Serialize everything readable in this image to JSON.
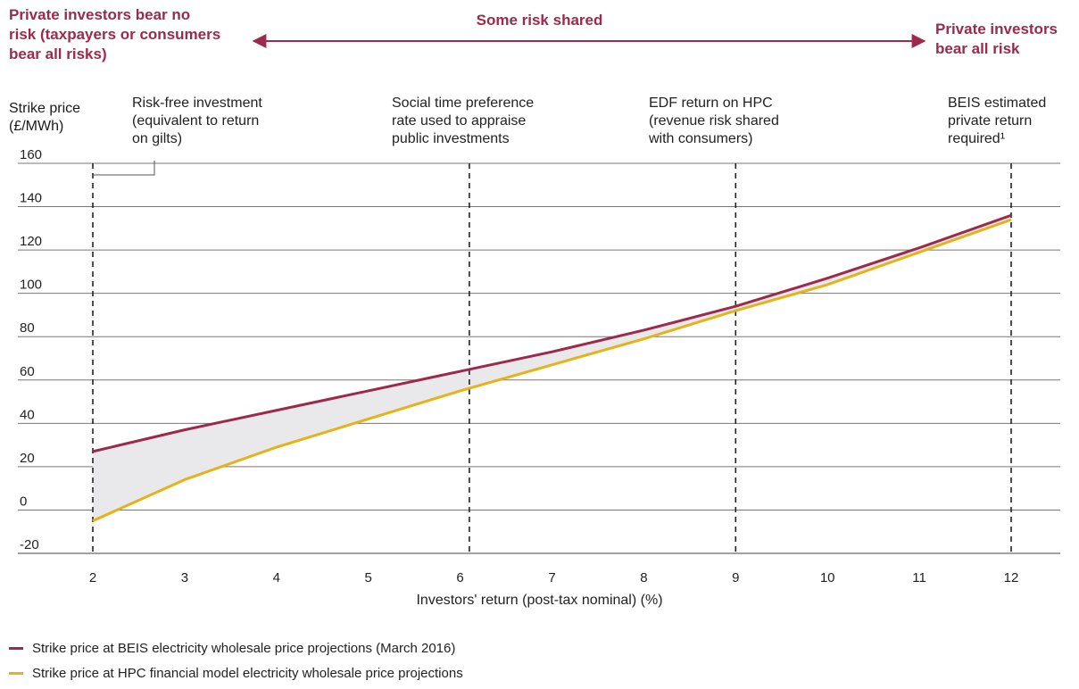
{
  "risk_banner": {
    "left": "Private investors bear no\nrisk (taxpayers or consumers\nbear all risks)",
    "middle": "Some risk shared",
    "right": "Private investors\nbear all risk",
    "color": "#9b2a4c"
  },
  "annotations": [
    {
      "x": 2,
      "text": "Risk-free investment\n(equivalent to return\non gilts)"
    },
    {
      "x": 6.1,
      "text": "Social time preference\nrate used to appraise\npublic investments"
    },
    {
      "x": 9,
      "text": "EDF return on HPC\n(revenue risk shared\nwith consumers)"
    },
    {
      "x": 12,
      "text": "BEIS estimated\nprivate return\nrequired¹"
    }
  ],
  "chart_data": {
    "type": "line",
    "title": "",
    "xlabel": "Investors' return (post-tax nominal) (%)",
    "ylabel": "Strike price\n(£/MWh)",
    "xlim": [
      2,
      12
    ],
    "ylim": [
      -20,
      160
    ],
    "x_ticks": [
      2,
      3,
      4,
      5,
      6,
      7,
      8,
      9,
      10,
      11,
      12
    ],
    "y_ticks": [
      -20,
      0,
      20,
      40,
      60,
      80,
      100,
      120,
      140,
      160
    ],
    "grid": "horizontal",
    "reference_lines_x": [
      2,
      6.1,
      9,
      12
    ],
    "shaded_between_series": true,
    "series": [
      {
        "name": "Strike price at BEIS electricity wholesale price projections (March 2016)",
        "color": "#9b2a4c",
        "x": [
          2,
          3,
          4,
          5,
          6,
          7,
          8,
          9,
          10,
          11,
          12
        ],
        "values": [
          27,
          37,
          46,
          55,
          64,
          73,
          83,
          94,
          107,
          121,
          136
        ]
      },
      {
        "name": "Strike price at HPC financial model electricity wholesale price projections",
        "color": "#e6b219",
        "x": [
          2,
          3,
          4,
          5,
          6,
          7,
          8,
          9,
          10,
          11,
          12
        ],
        "values": [
          -5,
          14,
          29,
          42,
          55,
          67,
          79,
          92,
          104,
          119,
          134
        ]
      }
    ]
  }
}
